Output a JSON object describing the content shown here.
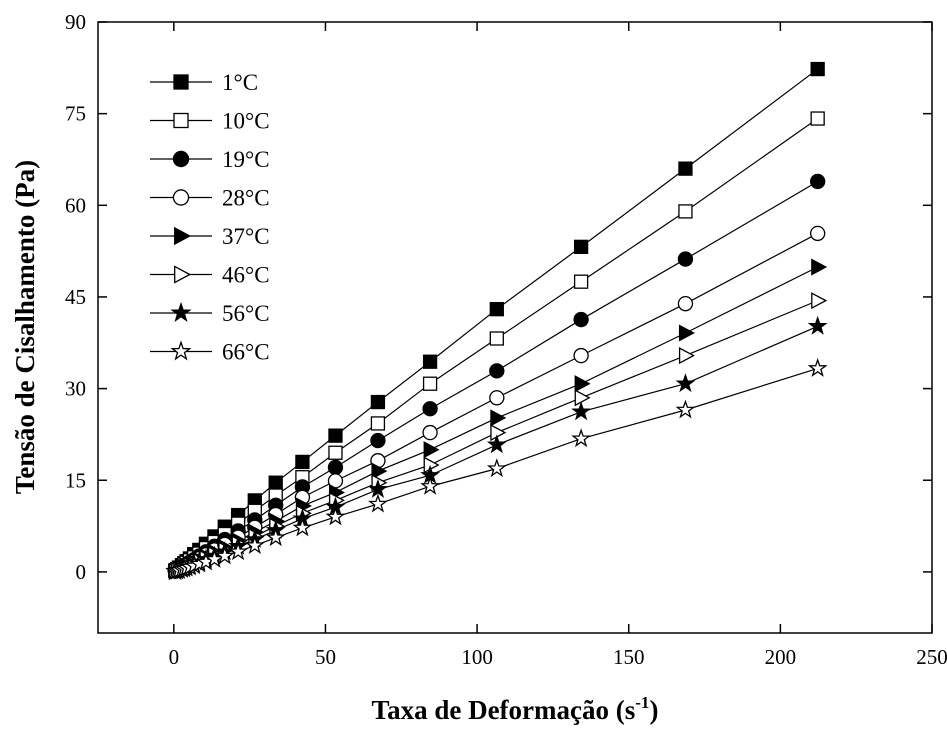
{
  "chart_data": {
    "type": "line",
    "title": "",
    "xlabel": "Taxa de Deformação (s",
    "xlabel_sup": "-1",
    "xlabel_close": ")",
    "ylabel": "Tensão de Cisalhamento (Pa)",
    "xlim": [
      -25,
      250
    ],
    "ylim": [
      -10,
      90
    ],
    "xticks": [
      0,
      50,
      100,
      150,
      200,
      250
    ],
    "yticks": [
      0,
      15,
      30,
      45,
      60,
      75,
      90
    ],
    "grid": false,
    "legend_position": "top-left",
    "x": [
      0.5,
      1.1,
      1.7,
      2.7,
      3.4,
      4.2,
      5.3,
      6.7,
      8.4,
      10.6,
      13.4,
      16.8,
      21.2,
      26.7,
      33.6,
      42.4,
      53.3,
      67.3,
      84.5,
      106.5,
      134.3,
      168.7,
      212.3
    ],
    "series": [
      {
        "name": "1°C",
        "marker": "square",
        "filled": true,
        "values": [
          0.2,
          0.45,
          0.7,
          1.1,
          1.4,
          1.75,
          2.2,
          2.9,
          3.6,
          4.6,
          5.8,
          7.4,
          9.3,
          11.7,
          14.6,
          18.0,
          22.3,
          27.8,
          34.4,
          43.0,
          53.2,
          66.0,
          82.3
        ]
      },
      {
        "name": "10°C",
        "marker": "square",
        "filled": false,
        "values": [
          0.18,
          0.4,
          0.6,
          0.95,
          1.2,
          1.5,
          1.9,
          2.4,
          3.0,
          3.9,
          4.9,
          6.2,
          7.9,
          10.0,
          12.5,
          15.5,
          19.5,
          24.3,
          30.8,
          38.2,
          47.5,
          59.0,
          74.2
        ]
      },
      {
        "name": "19°C",
        "marker": "circle",
        "filled": true,
        "values": [
          0.15,
          0.33,
          0.5,
          0.8,
          1.0,
          1.25,
          1.6,
          2.0,
          2.6,
          3.3,
          4.2,
          5.3,
          6.7,
          8.5,
          10.9,
          13.9,
          17.1,
          21.5,
          26.7,
          32.9,
          41.3,
          51.2,
          63.9
        ]
      },
      {
        "name": "28°C",
        "marker": "circle",
        "filled": false,
        "values": [
          0.12,
          0.28,
          0.43,
          0.7,
          0.88,
          1.1,
          1.4,
          1.75,
          2.2,
          2.8,
          3.6,
          4.5,
          5.7,
          7.3,
          9.4,
          12.2,
          14.9,
          18.2,
          22.8,
          28.5,
          35.4,
          43.9,
          55.4
        ]
      },
      {
        "name": "37°C",
        "marker": "triangle-right",
        "filled": true,
        "values": [
          0.1,
          0.24,
          0.38,
          0.62,
          0.78,
          0.97,
          1.25,
          1.55,
          1.95,
          2.5,
          3.2,
          4.0,
          5.1,
          6.5,
          8.3,
          10.8,
          13.0,
          16.5,
          20.0,
          25.2,
          30.8,
          39.1,
          49.9
        ]
      },
      {
        "name": "46°C",
        "marker": "triangle-right",
        "filled": false,
        "values": [
          0.09,
          0.21,
          0.33,
          0.55,
          0.69,
          0.86,
          1.1,
          1.38,
          1.75,
          2.2,
          2.85,
          3.6,
          4.6,
          5.8,
          7.5,
          9.6,
          11.7,
          14.6,
          17.5,
          22.8,
          28.5,
          35.4,
          44.4
        ]
      },
      {
        "name": "56°C",
        "marker": "star",
        "filled": true,
        "values": [
          0.08,
          0.19,
          0.3,
          0.5,
          0.63,
          0.79,
          1.0,
          1.26,
          1.6,
          2.05,
          2.6,
          3.3,
          4.2,
          5.3,
          6.8,
          8.7,
          10.6,
          13.5,
          15.8,
          20.8,
          26.2,
          30.8,
          40.2
        ]
      },
      {
        "name": "66°C",
        "marker": "star",
        "filled": false,
        "values": [
          0.06,
          0.15,
          0.24,
          0.4,
          0.5,
          0.63,
          0.8,
          1.0,
          1.28,
          1.62,
          2.05,
          2.6,
          3.3,
          4.3,
          5.6,
          7.2,
          9.0,
          11.1,
          14.0,
          16.9,
          21.8,
          26.5,
          33.3
        ]
      }
    ]
  }
}
